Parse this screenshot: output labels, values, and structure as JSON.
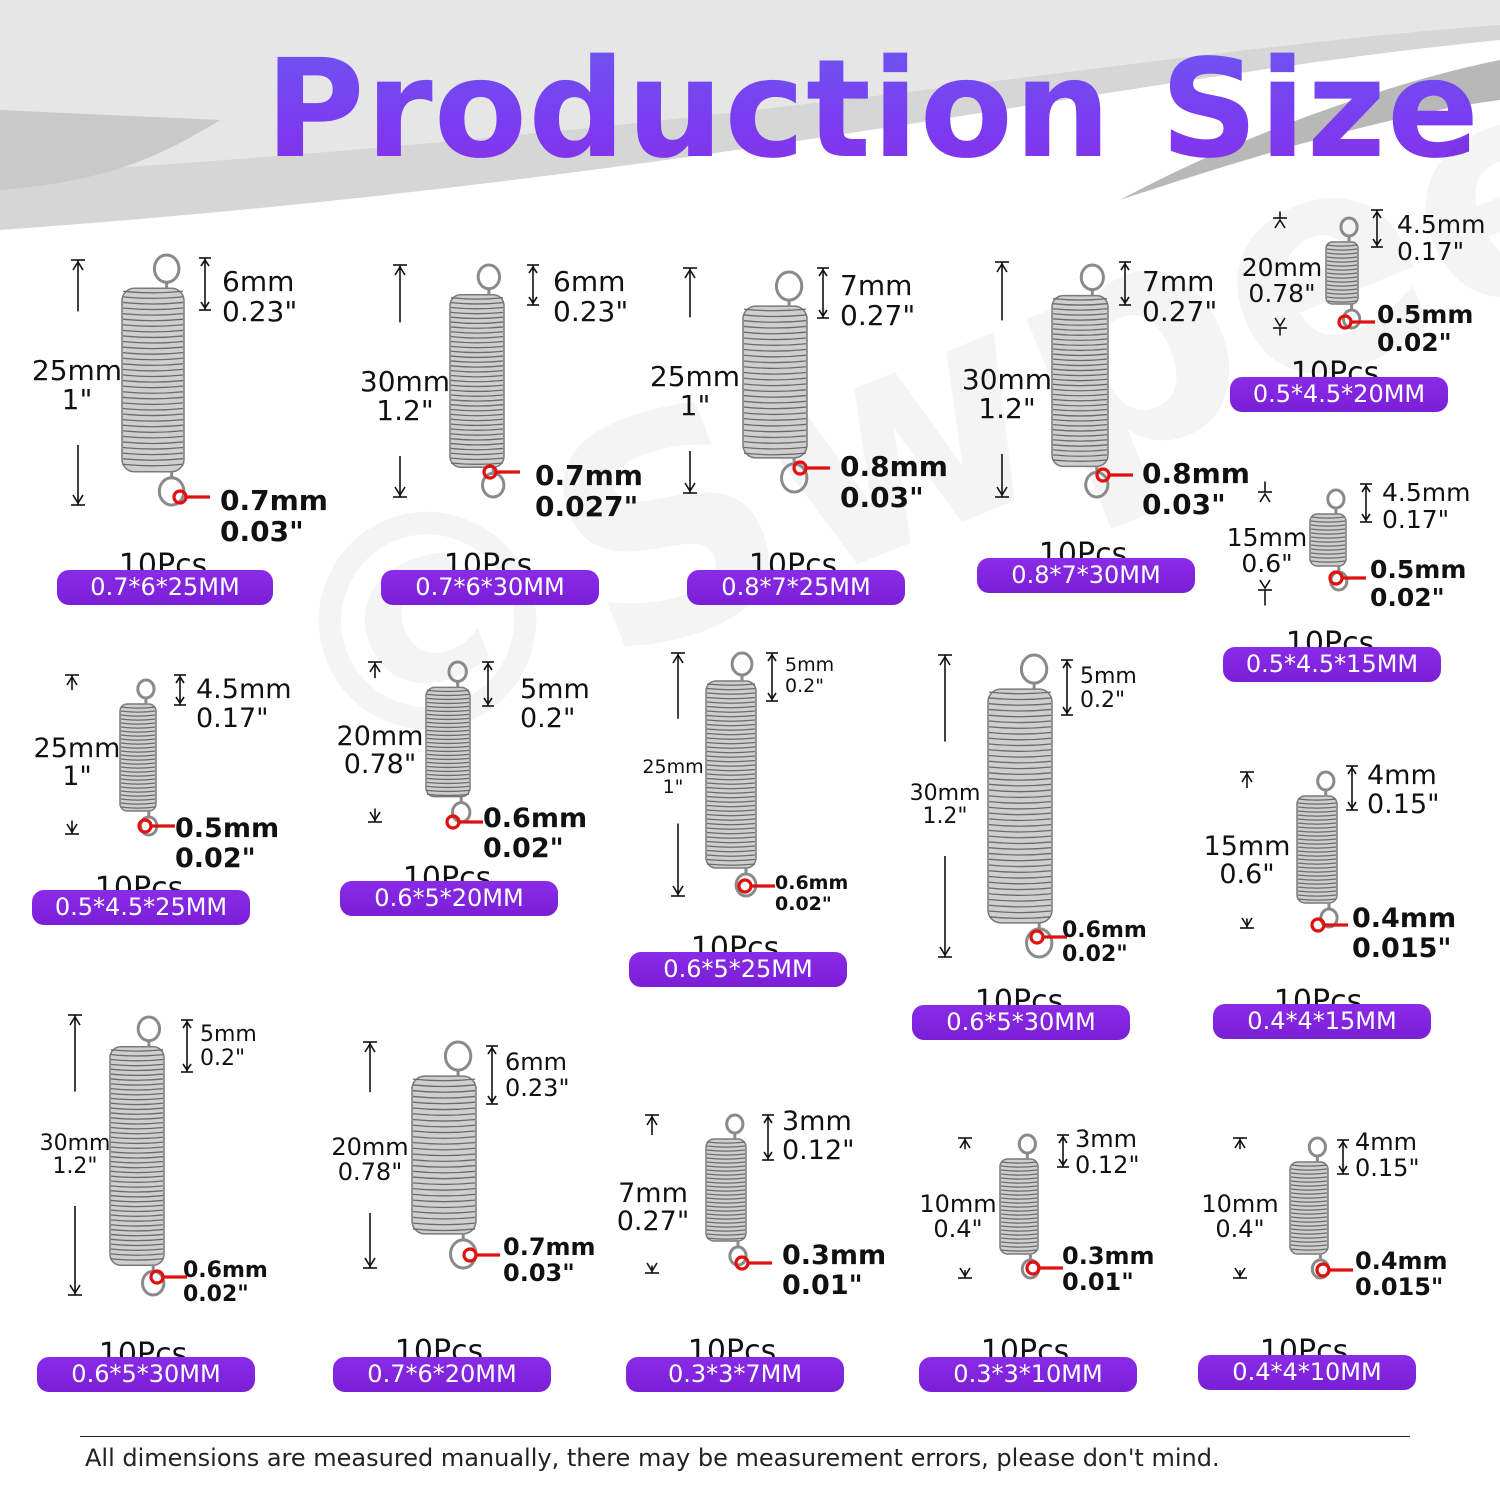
{
  "title": "Production Size",
  "watermark": "©Swpeet",
  "footer_note": "All dimensions are measured manually, there may be measurement errors, please don't mind.",
  "colors": {
    "title_top": "#6a5cf0",
    "title_bottom": "#8a2ce6",
    "badge": "#8a2be8",
    "wire_marker": "#e01010",
    "spring": "#8a8a8a"
  },
  "springs": [
    {
      "len_mm": "25mm",
      "len_in": "1\"",
      "od_mm": "6mm",
      "od_in": "0.23\"",
      "wire_mm": "0.7mm",
      "wire_in": "0.03\"",
      "qty": "10Pcs",
      "size": "0.7*6*25MM"
    },
    {
      "len_mm": "30mm",
      "len_in": "1.2\"",
      "od_mm": "6mm",
      "od_in": "0.23\"",
      "wire_mm": "0.7mm",
      "wire_in": "0.027\"",
      "qty": "10Pcs",
      "size": "0.7*6*30MM"
    },
    {
      "len_mm": "25mm",
      "len_in": "1\"",
      "od_mm": "7mm",
      "od_in": "0.27\"",
      "wire_mm": "0.8mm",
      "wire_in": "0.03\"",
      "qty": "10Pcs",
      "size": "0.8*7*25MM"
    },
    {
      "len_mm": "30mm",
      "len_in": "1.2\"",
      "od_mm": "7mm",
      "od_in": "0.27\"",
      "wire_mm": "0.8mm",
      "wire_in": "0.03\"",
      "qty": "10Pcs",
      "size": "0.8*7*30MM"
    },
    {
      "len_mm": "20mm",
      "len_in": "0.78\"",
      "od_mm": "4.5mm",
      "od_in": "0.17\"",
      "wire_mm": "0.5mm",
      "wire_in": "0.02\"",
      "qty": "10Pcs",
      "size": "0.5*4.5*20MM"
    },
    {
      "len_mm": "15mm",
      "len_in": "0.6\"",
      "od_mm": "4.5mm",
      "od_in": "0.17\"",
      "wire_mm": "0.5mm",
      "wire_in": "0.02\"",
      "qty": "10Pcs",
      "size": "0.5*4.5*15MM"
    },
    {
      "len_mm": "25mm",
      "len_in": "1\"",
      "od_mm": "4.5mm",
      "od_in": "0.17\"",
      "wire_mm": "0.5mm",
      "wire_in": "0.02\"",
      "qty": "10Pcs",
      "size": "0.5*4.5*25MM"
    },
    {
      "len_mm": "20mm",
      "len_in": "0.78\"",
      "od_mm": "5mm",
      "od_in": "0.2\"",
      "wire_mm": "0.6mm",
      "wire_in": "0.02\"",
      "qty": "10Pcs",
      "size": "0.6*5*20MM"
    },
    {
      "len_mm": "25mm",
      "len_in": "1\"",
      "od_mm": "5mm",
      "od_in": "0.2\"",
      "wire_mm": "0.6mm",
      "wire_in": "0.02\"",
      "qty": "10Pcs",
      "size": "0.6*5*25MM"
    },
    {
      "len_mm": "30mm",
      "len_in": "1.2\"",
      "od_mm": "5mm",
      "od_in": "0.2\"",
      "wire_mm": "0.6mm",
      "wire_in": "0.02\"",
      "qty": "10Pcs",
      "size": "0.6*5*30MM"
    },
    {
      "len_mm": "15mm",
      "len_in": "0.6\"",
      "od_mm": "4mm",
      "od_in": "0.15\"",
      "wire_mm": "0.4mm",
      "wire_in": "0.015\"",
      "qty": "10Pcs",
      "size": "0.4*4*15MM"
    },
    {
      "len_mm": "30mm",
      "len_in": "1.2\"",
      "od_mm": "5mm",
      "od_in": "0.2\"",
      "wire_mm": "0.6mm",
      "wire_in": "0.02\"",
      "qty": "10Pcs",
      "size": "0.6*5*30MM"
    },
    {
      "len_mm": "20mm",
      "len_in": "0.78\"",
      "od_mm": "6mm",
      "od_in": "0.23\"",
      "wire_mm": "0.7mm",
      "wire_in": "0.03\"",
      "qty": "10Pcs",
      "size": "0.7*6*20MM"
    },
    {
      "len_mm": "7mm",
      "len_in": "0.27\"",
      "od_mm": "3mm",
      "od_in": "0.12\"",
      "wire_mm": "0.3mm",
      "wire_in": "0.01\"",
      "qty": "10Pcs",
      "size": "0.3*3*7MM"
    },
    {
      "len_mm": "10mm",
      "len_in": "0.4\"",
      "od_mm": "3mm",
      "od_in": "0.12\"",
      "wire_mm": "0.3mm",
      "wire_in": "0.01\"",
      "qty": "10Pcs",
      "size": "0.3*3*10MM"
    },
    {
      "len_mm": "10mm",
      "len_in": "0.4\"",
      "od_mm": "4mm",
      "od_in": "0.15\"",
      "wire_mm": "0.4mm",
      "wire_in": "0.015\"",
      "qty": "10Pcs",
      "size": "0.4*4*10MM"
    }
  ]
}
